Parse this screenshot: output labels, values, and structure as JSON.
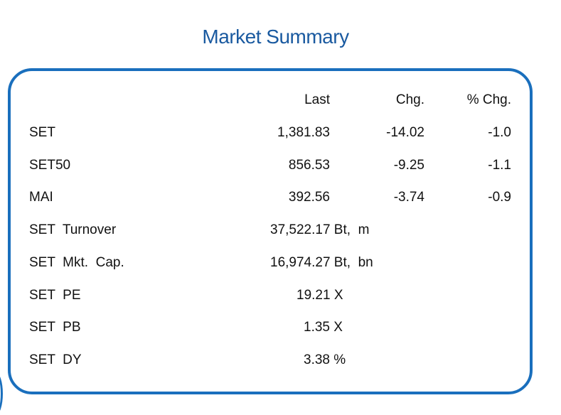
{
  "title": "Market Summary",
  "headers": {
    "last": "Last",
    "chg": "Chg.",
    "pct_chg": "% Chg."
  },
  "indices": [
    {
      "name": "SET",
      "last": "1,381.83",
      "chg": "-14.02",
      "pct_chg": "-1.0"
    },
    {
      "name": "SET50",
      "last": "856.53",
      "chg": "-9.25",
      "pct_chg": "-1.1"
    },
    {
      "name": "MAI",
      "last": "392.56",
      "chg": "-3.74",
      "pct_chg": "-0.9"
    }
  ],
  "stats": [
    {
      "name": "SET  Turnover",
      "value": "37,522.17 Bt,  m"
    },
    {
      "name": "SET  Mkt.  Cap.",
      "value": "16,974.27 Bt,  bn"
    },
    {
      "name": "SET  PE",
      "value": "19.21 X"
    },
    {
      "name": "SET  PB",
      "value": "1.35 X"
    },
    {
      "name": "SET  DY",
      "value": "3.38 %"
    }
  ]
}
